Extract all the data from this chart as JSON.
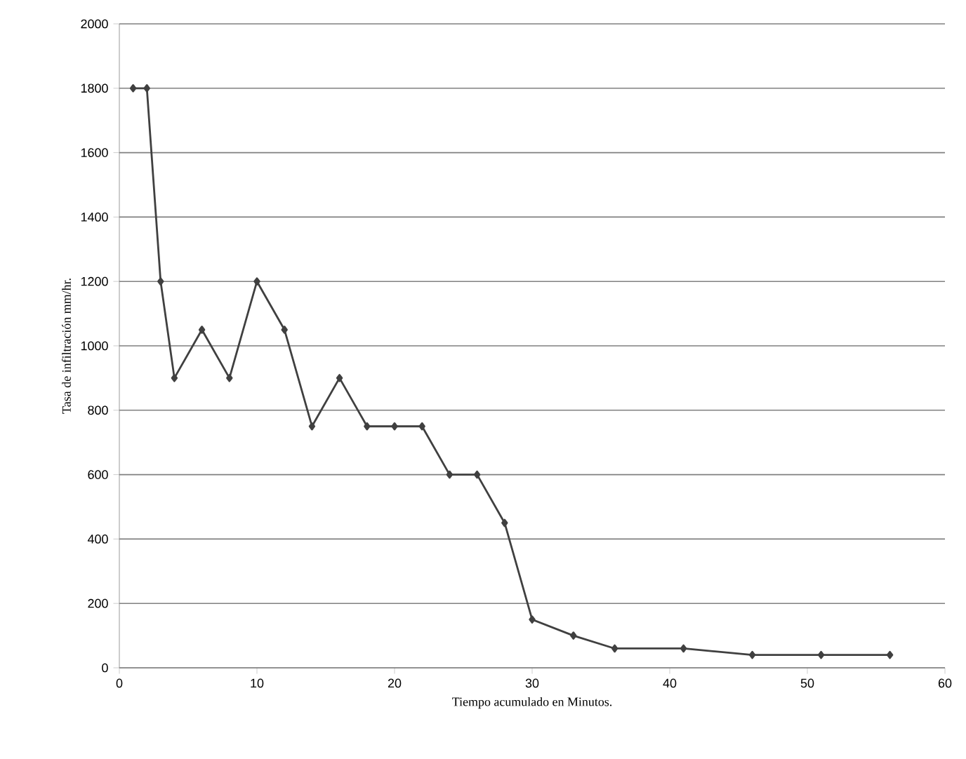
{
  "chart_data": {
    "type": "line",
    "xlabel": "Tiempo acumulado en Minutos.",
    "ylabel": "Tasa de infiltración mm/hr.",
    "x": [
      1,
      2,
      3,
      4,
      6,
      8,
      10,
      12,
      14,
      16,
      18,
      20,
      22,
      24,
      26,
      28,
      30,
      33,
      36,
      41,
      46,
      51,
      56
    ],
    "series": [
      {
        "color": "#404040",
        "values": [
          1800,
          1800,
          1200,
          900,
          1050,
          900,
          1200,
          1050,
          750,
          900,
          750,
          750,
          750,
          600,
          600,
          450,
          150,
          100,
          60,
          60,
          40,
          40,
          40
        ]
      }
    ],
    "xlim": [
      0,
      60
    ],
    "ylim": [
      0,
      2000
    ],
    "xticks": [
      0,
      10,
      20,
      30,
      40,
      50,
      60
    ],
    "yticks": [
      0,
      200,
      400,
      600,
      800,
      1000,
      1200,
      1400,
      1600,
      1800,
      2000
    ],
    "grid": "y",
    "marker": "diamond",
    "line_style": "solid"
  }
}
